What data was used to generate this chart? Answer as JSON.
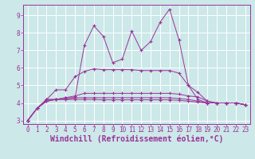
{
  "background_color": "#cce8e8",
  "grid_color": "#ffffff",
  "line_color": "#993399",
  "marker": "+",
  "xlabel": "Windchill (Refroidissement éolien,°C)",
  "xlim": [
    -0.5,
    23.5
  ],
  "ylim": [
    2.8,
    9.6
  ],
  "yticks": [
    3,
    4,
    5,
    6,
    7,
    8,
    9
  ],
  "xticks": [
    0,
    1,
    2,
    3,
    4,
    5,
    6,
    7,
    8,
    9,
    10,
    11,
    12,
    13,
    14,
    15,
    16,
    17,
    18,
    19,
    20,
    21,
    22,
    23
  ],
  "series": [
    {
      "x": [
        0,
        1,
        2,
        3,
        4,
        5,
        6,
        7,
        8,
        9,
        10,
        11,
        12,
        13,
        14,
        15,
        16,
        17,
        18,
        19,
        20,
        21,
        22,
        23
      ],
      "y": [
        3.0,
        3.7,
        4.2,
        4.2,
        4.3,
        4.3,
        7.3,
        8.4,
        7.8,
        6.3,
        6.5,
        8.1,
        7.0,
        7.5,
        8.6,
        9.35,
        7.6,
        5.0,
        4.2,
        4.0,
        4.0,
        4.0,
        4.0,
        3.9
      ]
    },
    {
      "x": [
        0,
        1,
        2,
        3,
        4,
        5,
        6,
        7,
        8,
        9,
        10,
        11,
        12,
        13,
        14,
        15,
        16,
        17,
        18,
        19,
        20,
        21,
        22,
        23
      ],
      "y": [
        3.0,
        3.7,
        4.2,
        4.75,
        4.75,
        5.5,
        5.8,
        5.95,
        5.9,
        5.9,
        5.9,
        5.9,
        5.85,
        5.85,
        5.85,
        5.85,
        5.7,
        5.0,
        4.6,
        4.1,
        4.0,
        4.0,
        4.0,
        3.9
      ]
    },
    {
      "x": [
        0,
        1,
        2,
        3,
        4,
        5,
        6,
        7,
        8,
        9,
        10,
        11,
        12,
        13,
        14,
        15,
        16,
        17,
        18,
        19,
        20,
        21,
        22,
        23
      ],
      "y": [
        3.0,
        3.7,
        4.2,
        4.2,
        4.3,
        4.4,
        4.55,
        4.55,
        4.55,
        4.55,
        4.55,
        4.55,
        4.55,
        4.55,
        4.55,
        4.55,
        4.5,
        4.4,
        4.35,
        4.1,
        4.0,
        4.0,
        4.0,
        3.9
      ]
    },
    {
      "x": [
        0,
        1,
        2,
        3,
        4,
        5,
        6,
        7,
        8,
        9,
        10,
        11,
        12,
        13,
        14,
        15,
        16,
        17,
        18,
        19,
        20,
        21,
        22,
        23
      ],
      "y": [
        3.0,
        3.7,
        4.1,
        4.2,
        4.2,
        4.3,
        4.3,
        4.3,
        4.3,
        4.3,
        4.3,
        4.3,
        4.3,
        4.3,
        4.3,
        4.3,
        4.25,
        4.2,
        4.1,
        4.0,
        4.0,
        4.0,
        4.0,
        3.9
      ]
    },
    {
      "x": [
        0,
        1,
        2,
        3,
        4,
        5,
        6,
        7,
        8,
        9,
        10,
        11,
        12,
        13,
        14,
        15,
        16,
        17,
        18,
        19,
        20,
        21,
        22,
        23
      ],
      "y": [
        3.0,
        3.7,
        4.1,
        4.2,
        4.2,
        4.2,
        4.2,
        4.2,
        4.18,
        4.18,
        4.18,
        4.18,
        4.18,
        4.18,
        4.18,
        4.18,
        4.15,
        4.1,
        4.05,
        4.0,
        4.0,
        4.0,
        4.0,
        3.9
      ]
    }
  ],
  "font_color": "#993399",
  "tick_fontsize": 5.5,
  "xlabel_fontsize": 7,
  "figsize": [
    3.2,
    2.0
  ],
  "dpi": 100
}
